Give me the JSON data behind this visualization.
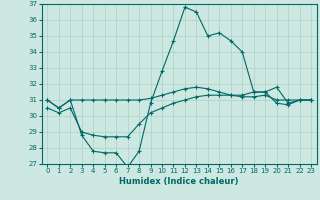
{
  "xlabel": "Humidex (Indice chaleur)",
  "background_color": "#cce8e0",
  "grid_color": "#aad0c8",
  "line_color": "#006868",
  "xlim": [
    -0.5,
    23.5
  ],
  "ylim": [
    27,
    37
  ],
  "yticks": [
    27,
    28,
    29,
    30,
    31,
    32,
    33,
    34,
    35,
    36,
    37
  ],
  "xticks": [
    0,
    1,
    2,
    3,
    4,
    5,
    6,
    7,
    8,
    9,
    10,
    11,
    12,
    13,
    14,
    15,
    16,
    17,
    18,
    19,
    20,
    21,
    22,
    23
  ],
  "series1_x": [
    0,
    1,
    2,
    3,
    4,
    5,
    6,
    7,
    8,
    9,
    10,
    11,
    12,
    13,
    14,
    15,
    16,
    17,
    18,
    19,
    20,
    21,
    22,
    23
  ],
  "series1_y": [
    31.0,
    30.5,
    31.0,
    31.0,
    31.0,
    31.0,
    31.0,
    31.0,
    31.0,
    31.1,
    31.3,
    31.5,
    31.7,
    31.8,
    31.7,
    31.5,
    31.3,
    31.2,
    31.2,
    31.3,
    31.0,
    31.0,
    31.0,
    31.0
  ],
  "series2_x": [
    0,
    1,
    2,
    3,
    4,
    5,
    6,
    7,
    8,
    9,
    10,
    11,
    12,
    13,
    14,
    15,
    16,
    17,
    18,
    19,
    20,
    21,
    22,
    23
  ],
  "series2_y": [
    31.0,
    30.5,
    31.0,
    28.8,
    27.8,
    27.7,
    27.7,
    26.8,
    27.8,
    30.8,
    32.8,
    34.7,
    36.8,
    36.5,
    35.0,
    35.2,
    34.7,
    34.0,
    31.5,
    31.5,
    31.8,
    30.8,
    31.0,
    31.0
  ],
  "series3_x": [
    0,
    1,
    2,
    3,
    4,
    5,
    6,
    7,
    8,
    9,
    10,
    11,
    12,
    13,
    14,
    15,
    16,
    17,
    18,
    19,
    20,
    21,
    22,
    23
  ],
  "series3_y": [
    30.5,
    30.2,
    30.5,
    29.0,
    28.8,
    28.7,
    28.7,
    28.7,
    29.5,
    30.2,
    30.5,
    30.8,
    31.0,
    31.2,
    31.3,
    31.3,
    31.3,
    31.3,
    31.5,
    31.5,
    30.8,
    30.7,
    31.0,
    31.0
  ]
}
